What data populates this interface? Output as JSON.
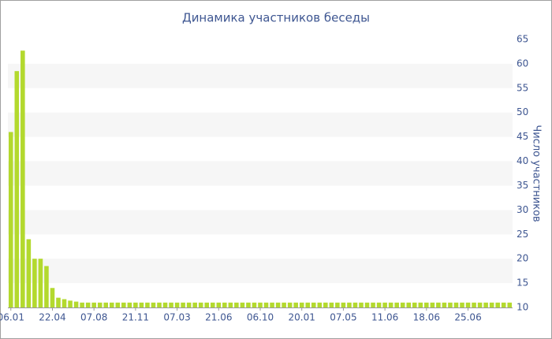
{
  "chart_data": {
    "type": "bar",
    "title": "Динамика участников беседы",
    "y_label": "Число участников",
    "categories": [
      "06.01",
      null,
      null,
      null,
      null,
      null,
      null,
      "22.04",
      null,
      null,
      null,
      null,
      null,
      null,
      "07.08",
      null,
      null,
      null,
      null,
      null,
      null,
      "21.11",
      null,
      null,
      null,
      null,
      null,
      null,
      "07.03",
      null,
      null,
      null,
      null,
      null,
      null,
      "21.06",
      null,
      null,
      null,
      null,
      null,
      null,
      "06.10",
      null,
      null,
      null,
      null,
      null,
      null,
      "20.01",
      null,
      null,
      null,
      null,
      null,
      null,
      "07.05",
      null,
      null,
      null,
      null,
      null,
      null,
      "11.06",
      null,
      null,
      null,
      null,
      null,
      null,
      "18.06",
      null,
      null,
      null,
      null,
      null,
      null,
      "25.06",
      null,
      null,
      null,
      null,
      null,
      null,
      null
    ],
    "values": [
      46,
      58.5,
      62.7,
      24,
      20,
      20,
      18.5,
      14,
      12,
      11.7,
      11.4,
      11.2,
      11,
      11,
      11,
      11,
      11,
      11,
      11,
      11,
      11,
      11,
      11,
      11,
      11,
      11,
      11,
      11,
      11,
      11,
      11,
      11,
      11,
      11,
      11,
      11,
      11,
      11,
      11,
      11,
      11,
      11,
      11,
      11,
      11,
      11,
      11,
      11,
      11,
      11,
      11,
      11,
      11,
      11,
      11,
      11,
      11,
      11,
      11,
      11,
      11,
      11,
      11,
      11,
      11,
      11,
      11,
      11,
      11,
      11,
      11,
      11,
      11,
      11,
      11,
      11,
      11,
      11,
      11,
      11,
      11,
      11,
      11,
      11,
      11
    ],
    "color": "#b3d92e",
    "ylim": [
      10,
      65
    ],
    "yticks": [
      10,
      15,
      20,
      25,
      30,
      35,
      40,
      45,
      50,
      55,
      60,
      65
    ],
    "grid": "bands",
    "y_axis_side": "right"
  }
}
